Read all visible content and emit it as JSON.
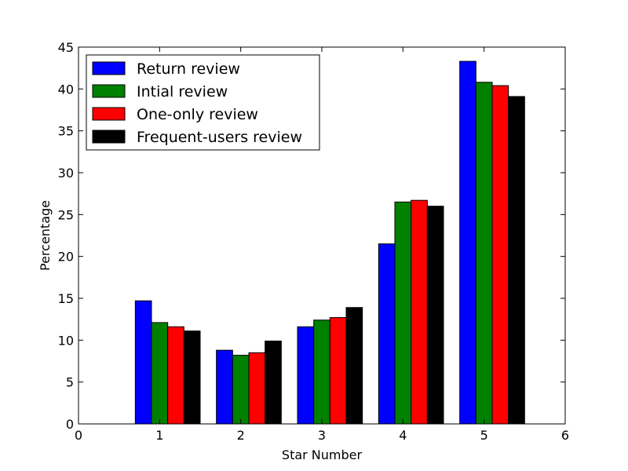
{
  "chart_data": {
    "type": "bar",
    "title": "",
    "xlabel": "Star Number",
    "ylabel": "Percentage",
    "xlim": [
      0,
      6
    ],
    "ylim": [
      0,
      45
    ],
    "xticks": [
      "0",
      "1",
      "2",
      "3",
      "4",
      "5",
      "6"
    ],
    "yticks": [
      "0",
      "5",
      "10",
      "15",
      "20",
      "25",
      "30",
      "35",
      "40",
      "45"
    ],
    "categories": [
      1,
      2,
      3,
      4,
      5
    ],
    "grid": false,
    "legend_position": "top-left",
    "series": [
      {
        "name": "Return review",
        "color": "#0000ff",
        "values": [
          14.7,
          8.8,
          11.6,
          21.5,
          43.3
        ]
      },
      {
        "name": "Intial review",
        "color": "#008000",
        "values": [
          12.1,
          8.2,
          12.4,
          26.5,
          40.8
        ]
      },
      {
        "name": "One-only review",
        "color": "#ff0000",
        "values": [
          11.6,
          8.5,
          12.7,
          26.7,
          40.4
        ]
      },
      {
        "name": "Frequent-users review",
        "color": "#000000",
        "values": [
          11.1,
          9.9,
          13.9,
          26.0,
          39.1
        ]
      }
    ]
  }
}
